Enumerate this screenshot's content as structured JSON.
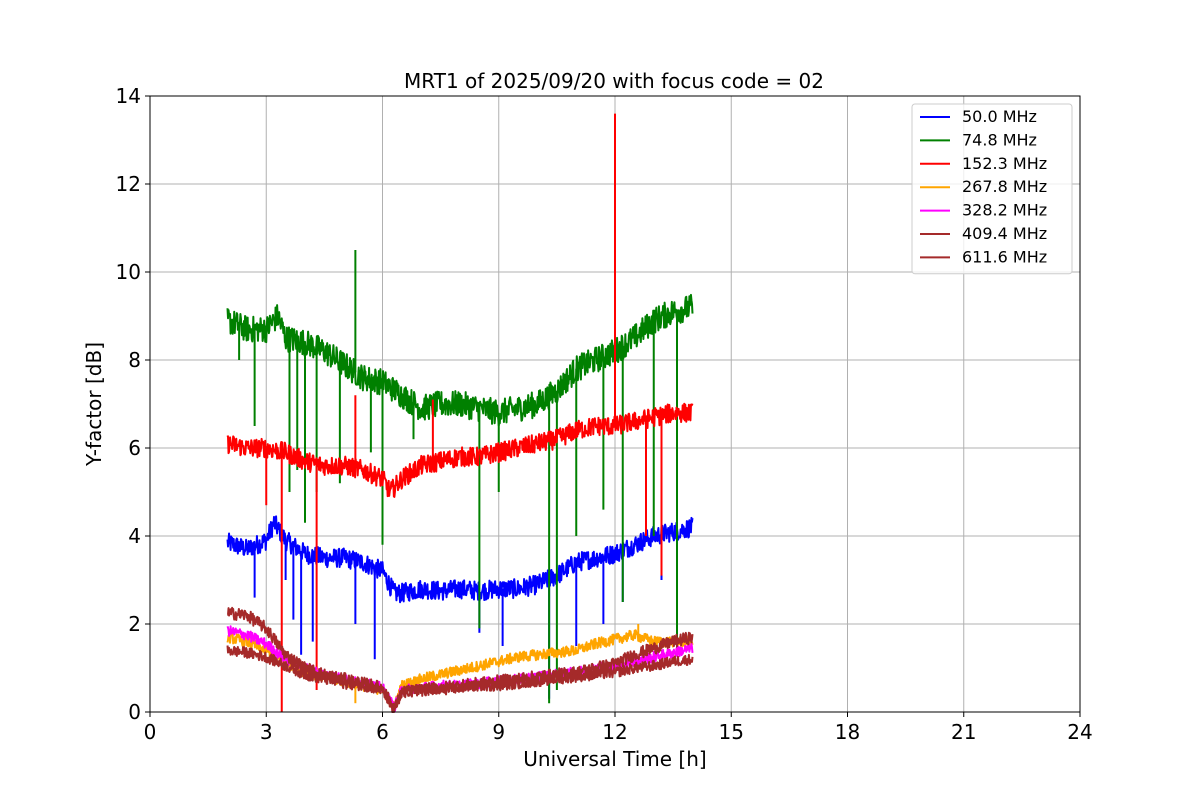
{
  "chart_data": {
    "type": "line",
    "title": "MRT1 of 2025/09/20 with focus code = 02",
    "xlabel": "Universal Time [h]",
    "ylabel": "Y-factor [dB]",
    "xlim": [
      0,
      24
    ],
    "ylim": [
      0,
      14
    ],
    "xticks": [
      0,
      3,
      6,
      9,
      12,
      15,
      18,
      21,
      24
    ],
    "yticks": [
      0,
      2,
      4,
      6,
      8,
      10,
      12,
      14
    ],
    "grid": true,
    "legend_position": "top-right",
    "series": [
      {
        "name": " 50.0 MHz",
        "color": "#0000ff",
        "x": [
          2.0,
          2.5,
          3.0,
          3.2,
          3.5,
          4.0,
          4.5,
          5.0,
          5.5,
          6.0,
          6.3,
          6.5,
          7.0,
          7.5,
          8.0,
          8.5,
          9.0,
          9.5,
          10.0,
          10.5,
          11.0,
          11.5,
          12.0,
          12.5,
          13.0,
          13.5,
          14.0
        ],
        "y": [
          3.85,
          3.7,
          3.9,
          4.3,
          3.9,
          3.6,
          3.5,
          3.5,
          3.4,
          3.2,
          2.7,
          2.7,
          2.8,
          2.75,
          2.8,
          2.75,
          2.8,
          2.8,
          2.9,
          3.1,
          3.4,
          3.5,
          3.6,
          3.8,
          4.0,
          4.1,
          4.2
        ],
        "spikes": [
          [
            2.7,
            2.6
          ],
          [
            3.5,
            3.0
          ],
          [
            3.7,
            2.1
          ],
          [
            3.9,
            1.3
          ],
          [
            4.2,
            1.6
          ],
          [
            5.3,
            2.0
          ],
          [
            5.8,
            1.2
          ],
          [
            8.5,
            1.8
          ],
          [
            9.1,
            1.5
          ],
          [
            10.3,
            0.3
          ],
          [
            11.0,
            1.5
          ],
          [
            11.7,
            2.0
          ],
          [
            12.2,
            2.5
          ],
          [
            13.2,
            3.0
          ]
        ]
      },
      {
        "name": " 74.8 MHz",
        "color": "#008000",
        "x": [
          2.0,
          2.5,
          3.0,
          3.3,
          3.5,
          4.0,
          4.5,
          5.0,
          5.5,
          6.0,
          6.5,
          7.0,
          7.5,
          8.0,
          8.5,
          9.0,
          9.5,
          10.0,
          10.5,
          11.0,
          11.5,
          12.0,
          12.5,
          13.0,
          13.5,
          14.0
        ],
        "y": [
          8.9,
          8.7,
          8.7,
          9.0,
          8.5,
          8.4,
          8.2,
          7.9,
          7.6,
          7.5,
          7.2,
          6.9,
          7.0,
          7.0,
          6.9,
          6.8,
          6.9,
          7.0,
          7.3,
          7.8,
          8.0,
          8.2,
          8.5,
          8.9,
          9.1,
          9.2
        ],
        "spikes": [
          [
            2.3,
            8.0
          ],
          [
            2.7,
            6.5
          ],
          [
            3.6,
            5.0
          ],
          [
            3.8,
            5.5
          ],
          [
            4.0,
            4.3
          ],
          [
            4.3,
            5.0
          ],
          [
            4.9,
            5.2
          ],
          [
            5.3,
            10.5
          ],
          [
            5.7,
            5.9
          ],
          [
            6.0,
            3.8
          ],
          [
            6.8,
            6.2
          ],
          [
            8.5,
            1.9
          ],
          [
            9.0,
            5.0
          ],
          [
            10.3,
            0.2
          ],
          [
            10.5,
            0.5
          ],
          [
            11.0,
            4.0
          ],
          [
            11.7,
            4.6
          ],
          [
            12.2,
            2.5
          ],
          [
            13.0,
            4.0
          ],
          [
            13.6,
            1.4
          ]
        ]
      },
      {
        "name": " 152.3 MHz",
        "color": "#ff0000",
        "x": [
          2.0,
          2.5,
          3.0,
          3.5,
          4.0,
          4.5,
          5.0,
          5.5,
          6.0,
          6.2,
          6.5,
          7.0,
          7.5,
          8.0,
          8.5,
          9.0,
          9.5,
          10.0,
          10.5,
          11.0,
          11.5,
          12.0,
          12.5,
          13.0,
          13.5,
          14.0
        ],
        "y": [
          6.1,
          6.0,
          6.0,
          5.9,
          5.7,
          5.6,
          5.6,
          5.5,
          5.3,
          5.0,
          5.3,
          5.6,
          5.7,
          5.8,
          5.8,
          5.9,
          6.0,
          6.1,
          6.2,
          6.4,
          6.5,
          6.5,
          6.6,
          6.7,
          6.8,
          6.8
        ],
        "spikes": [
          [
            3.0,
            4.7
          ],
          [
            3.4,
            0.0
          ],
          [
            4.3,
            0.5
          ],
          [
            5.3,
            7.2
          ],
          [
            7.3,
            7.1
          ],
          [
            12.0,
            13.6
          ],
          [
            12.8,
            4.0
          ],
          [
            13.2,
            3.1
          ]
        ]
      },
      {
        "name": " 267.8 MHz",
        "color": "#ffa500",
        "x": [
          2.0,
          2.5,
          3.0,
          3.5,
          4.0,
          4.5,
          5.0,
          5.5,
          6.0,
          6.3,
          6.5,
          7.0,
          7.5,
          8.0,
          8.5,
          9.0,
          9.5,
          10.0,
          10.5,
          11.0,
          11.5,
          12.0,
          12.5,
          13.0,
          13.5,
          14.0
        ],
        "y": [
          1.7,
          1.6,
          1.4,
          1.1,
          0.9,
          0.8,
          0.7,
          0.6,
          0.5,
          0.1,
          0.6,
          0.75,
          0.85,
          0.95,
          1.05,
          1.15,
          1.25,
          1.3,
          1.35,
          1.4,
          1.55,
          1.65,
          1.75,
          1.6,
          1.6,
          1.6
        ],
        "spikes": [
          [
            5.3,
            0.2
          ],
          [
            12.6,
            2.0
          ]
        ]
      },
      {
        "name": " 328.2 MHz",
        "color": "#ff00ff",
        "x": [
          2.0,
          2.5,
          3.0,
          3.5,
          4.0,
          4.5,
          5.0,
          5.5,
          6.0,
          6.3,
          6.5,
          7.0,
          7.5,
          8.0,
          8.5,
          9.0,
          9.5,
          10.0,
          10.5,
          11.0,
          11.5,
          12.0,
          12.5,
          13.0,
          13.5,
          14.0
        ],
        "y": [
          1.85,
          1.75,
          1.55,
          1.2,
          1.0,
          0.85,
          0.75,
          0.65,
          0.55,
          0.1,
          0.5,
          0.55,
          0.6,
          0.6,
          0.65,
          0.7,
          0.75,
          0.8,
          0.85,
          0.9,
          1.0,
          1.05,
          1.15,
          1.25,
          1.35,
          1.45
        ],
        "spikes": []
      },
      {
        "name": " 409.4 MHz",
        "color": "#a52a2a",
        "x": [
          2.0,
          2.5,
          3.0,
          3.5,
          4.0,
          4.5,
          5.0,
          5.5,
          6.0,
          6.3,
          6.5,
          7.0,
          7.5,
          8.0,
          8.5,
          9.0,
          9.5,
          10.0,
          10.5,
          11.0,
          11.5,
          12.0,
          12.5,
          13.0,
          13.5,
          14.0
        ],
        "y": [
          2.25,
          2.2,
          1.9,
          1.3,
          1.0,
          0.85,
          0.75,
          0.65,
          0.55,
          0.05,
          0.45,
          0.5,
          0.55,
          0.6,
          0.65,
          0.7,
          0.75,
          0.8,
          0.85,
          0.9,
          1.0,
          1.1,
          1.3,
          1.45,
          1.6,
          1.7
        ],
        "spikes": []
      },
      {
        "name": " 611.6 MHz",
        "color": "#a52a2a",
        "x": [
          2.0,
          2.5,
          3.0,
          3.5,
          4.0,
          4.5,
          5.0,
          5.5,
          6.0,
          6.3,
          6.5,
          7.0,
          7.5,
          8.0,
          8.5,
          9.0,
          9.5,
          10.0,
          10.5,
          11.0,
          11.5,
          12.0,
          12.5,
          13.0,
          13.5,
          14.0
        ],
        "y": [
          1.4,
          1.35,
          1.25,
          1.05,
          0.85,
          0.75,
          0.65,
          0.6,
          0.5,
          0.05,
          0.45,
          0.5,
          0.5,
          0.55,
          0.6,
          0.6,
          0.65,
          0.7,
          0.75,
          0.8,
          0.85,
          0.9,
          1.0,
          1.05,
          1.15,
          1.2
        ],
        "spikes": []
      }
    ]
  }
}
